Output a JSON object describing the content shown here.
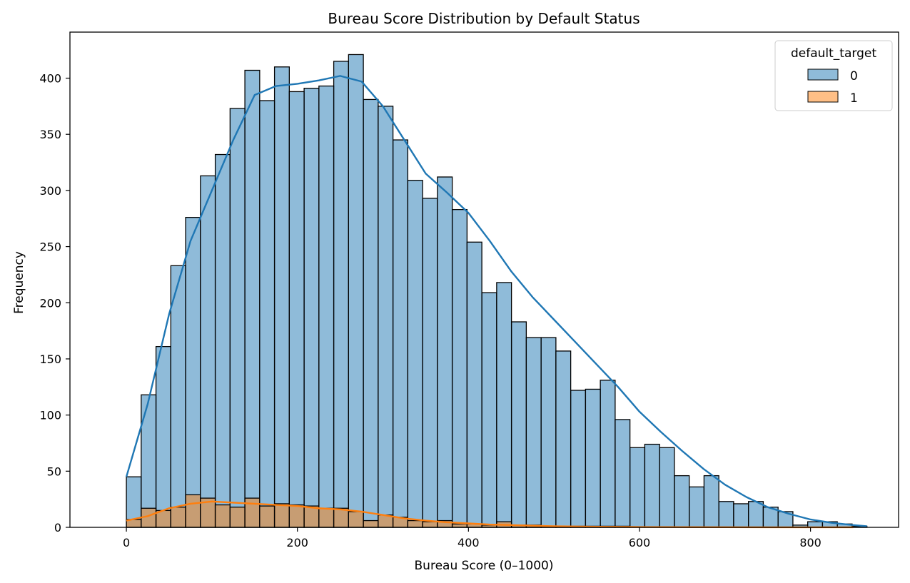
{
  "chart_data": {
    "type": "bar",
    "title": "Bureau Score Distribution by Default Status",
    "xlabel": "Bureau Score (0–1000)",
    "ylabel": "Frequency",
    "xlim": [
      -66,
      903
    ],
    "ylim": [
      0,
      441
    ],
    "xticks": [
      0,
      200,
      400,
      600,
      800
    ],
    "yticks": [
      0,
      50,
      100,
      150,
      200,
      250,
      300,
      350,
      400
    ],
    "bin_start": 0,
    "bin_width": 17.32,
    "grid": false,
    "legend": {
      "title": "default_target",
      "placement": "top-right",
      "entries": [
        {
          "label": "0",
          "color": "#1f77b4"
        },
        {
          "label": "1",
          "color": "#ff7f0e"
        }
      ]
    },
    "series": [
      {
        "name": "0",
        "color": "#1f77b4",
        "values": [
          45,
          118,
          161,
          233,
          276,
          313,
          332,
          373,
          407,
          380,
          410,
          388,
          391,
          393,
          415,
          421,
          381,
          375,
          345,
          309,
          293,
          312,
          283,
          254,
          209,
          218,
          183,
          169,
          169,
          157,
          122,
          123,
          131,
          96,
          71,
          74,
          71,
          46,
          36,
          46,
          23,
          21,
          23,
          18,
          14,
          2,
          5,
          5,
          3,
          1
        ]
      },
      {
        "name": "1",
        "color": "#ff7f0e",
        "values": [
          7,
          17,
          15,
          18,
          29,
          26,
          20,
          18,
          26,
          19,
          21,
          20,
          19,
          17,
          17,
          14,
          6,
          11,
          9,
          6,
          5,
          6,
          3,
          3,
          2,
          5,
          2,
          2,
          1,
          1,
          1,
          1,
          1,
          1,
          0,
          0,
          0,
          0,
          0,
          0,
          0,
          0,
          0,
          0,
          0,
          0,
          0,
          0,
          0,
          0
        ]
      }
    ],
    "kde": [
      {
        "name": "0",
        "color": "#1f77b4",
        "x": [
          0,
          25,
          50,
          75,
          100,
          125,
          150,
          175,
          200,
          225,
          250,
          275,
          300,
          325,
          350,
          375,
          400,
          425,
          450,
          475,
          500,
          525,
          550,
          575,
          600,
          625,
          650,
          675,
          700,
          725,
          750,
          775,
          800,
          825,
          850,
          866
        ],
        "y": [
          45,
          110,
          190,
          255,
          300,
          345,
          385,
          393,
          395,
          398,
          402,
          397,
          375,
          345,
          315,
          298,
          280,
          255,
          228,
          205,
          185,
          165,
          145,
          125,
          103,
          85,
          68,
          52,
          38,
          27,
          18,
          12,
          7,
          4,
          2,
          1
        ]
      },
      {
        "name": "1",
        "color": "#ff7f0e",
        "x": [
          0,
          25,
          50,
          75,
          100,
          125,
          150,
          175,
          200,
          225,
          250,
          275,
          300,
          325,
          350,
          375,
          400,
          425,
          450,
          500,
          550,
          600,
          650,
          700,
          750,
          800,
          850
        ],
        "y": [
          6,
          10,
          17,
          21,
          23,
          22,
          21,
          20,
          19,
          17,
          16,
          14,
          11,
          8,
          6,
          4.5,
          3.5,
          2.5,
          2,
          1,
          0.5,
          0.3,
          0.2,
          0.1,
          0.05,
          0.02,
          0.01
        ]
      }
    ]
  }
}
